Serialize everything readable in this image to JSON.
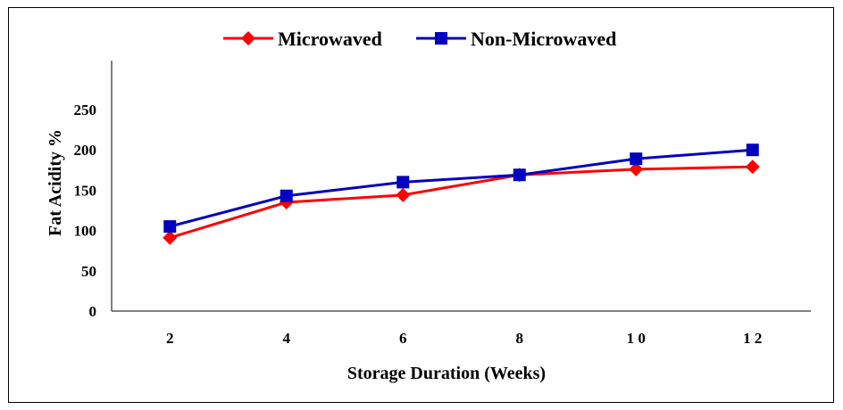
{
  "chart_data": {
    "type": "line",
    "title": "",
    "xlabel": "Storage Duration (Weeks)",
    "ylabel": "Fat Acidity %",
    "categories": [
      "2",
      "4",
      "6",
      "8",
      "1 0",
      "1 2"
    ],
    "ylim": [
      0,
      250
    ],
    "yticks": [
      0,
      50,
      100,
      150,
      200,
      250
    ],
    "ytick_labels": [
      "0",
      "50",
      "100",
      "150",
      "200",
      "250"
    ],
    "grid": false,
    "legend_position": "top-center",
    "series": [
      {
        "name": "Microwaved",
        "values": [
          91,
          135,
          144,
          169,
          176,
          179
        ],
        "color": "#ff0000",
        "marker": "diamond"
      },
      {
        "name": "Non-Microwaved",
        "values": [
          105,
          143,
          160,
          169,
          189,
          200
        ],
        "color": "#0000c0",
        "marker": "square"
      }
    ]
  }
}
